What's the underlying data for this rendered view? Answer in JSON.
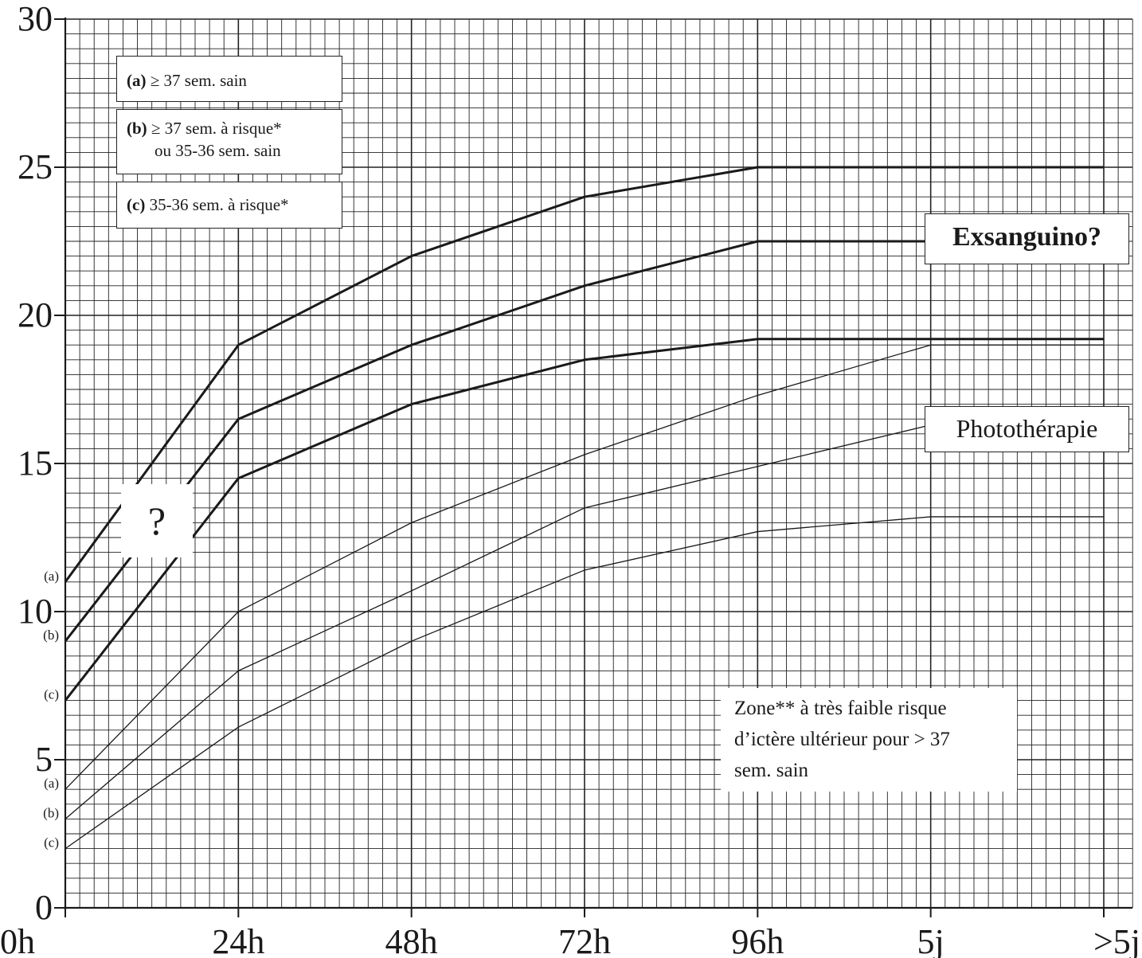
{
  "chart_data": {
    "type": "line",
    "title": "",
    "xlabel": "",
    "ylabel": "",
    "ylim": [
      0,
      30
    ],
    "y_ticks": [
      "0",
      "5",
      "10",
      "15",
      "20",
      "25",
      "30"
    ],
    "x_ticks": [
      "0h",
      "24h",
      "48h",
      "72h",
      "96h",
      "5j",
      ">5j"
    ],
    "x": [
      0,
      24,
      48,
      72,
      96,
      120,
      144
    ],
    "grid": true,
    "series": [
      {
        "name": "(a) Exsanguino",
        "weight": "bold",
        "start_label": "(a)",
        "values": [
          11,
          19,
          22,
          24,
          25,
          25,
          25
        ]
      },
      {
        "name": "(b) Exsanguino",
        "weight": "bold",
        "start_label": "(b)",
        "values": [
          9,
          16.5,
          19,
          21,
          22.5,
          22.5,
          22.5
        ]
      },
      {
        "name": "(c) Exsanguino",
        "weight": "bold",
        "start_label": "(c)",
        "values": [
          7,
          14.5,
          17,
          18.5,
          19.2,
          19.2,
          19.2
        ]
      },
      {
        "name": "(a) Photothérapie",
        "weight": "thin",
        "start_label": "(a)",
        "values": [
          4,
          10,
          13,
          15.3,
          17.3,
          19,
          19
        ]
      },
      {
        "name": "(b) Photothérapie",
        "weight": "thin",
        "start_label": "(b)",
        "values": [
          3,
          8,
          10.7,
          13.5,
          14.9,
          16.3,
          16.3
        ]
      },
      {
        "name": "(c) Photothérapie",
        "weight": "thin",
        "start_label": "(c)",
        "values": [
          2,
          6.1,
          9,
          11.4,
          12.7,
          13.2,
          13.2
        ]
      }
    ]
  },
  "legend": {
    "a": {
      "tag": "(a)",
      "text": "≥ 37 sem. sain"
    },
    "b": {
      "tag": "(b)",
      "text": "≥ 37 sem. à risque*",
      "text2": "ou 35-36 sem. sain"
    },
    "c": {
      "tag": "(c)",
      "text": "35-36 sem. à risque*"
    }
  },
  "annotations": {
    "exsanguino": "Exsanguino?",
    "phototherapie": "Photothérapie",
    "zone_line1": "Zone** à très faible risque",
    "zone_line2": "d’ictère ultérieur pour > 37",
    "zone_line3": "sem. sain",
    "question": "?"
  },
  "colors": {
    "line": "#1a1a1a",
    "grid": "#222222",
    "background": "#ffffff"
  }
}
